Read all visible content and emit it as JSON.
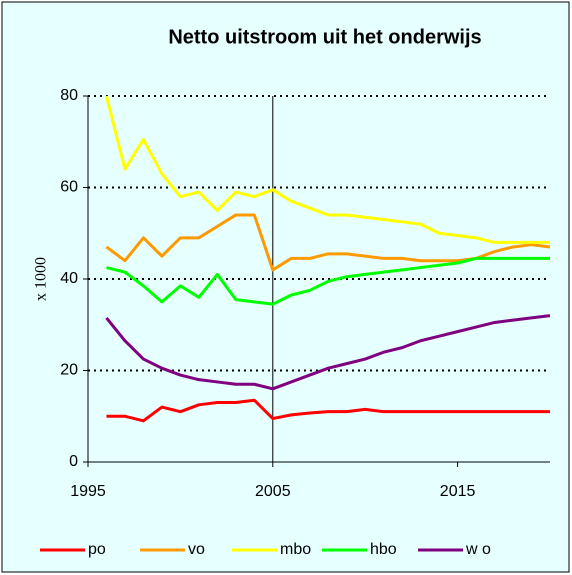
{
  "chart_data": {
    "type": "line",
    "title": "Netto uitstroom uit het  onderwijs",
    "y_label": "x 1000",
    "x": [
      1996,
      1997,
      1998,
      1999,
      2000,
      2001,
      2002,
      2003,
      2004,
      2005,
      2006,
      2007,
      2008,
      2009,
      2010,
      2011,
      2012,
      2013,
      2014,
      2015,
      2016,
      2017,
      2018,
      2019,
      2020
    ],
    "xlim": [
      1995,
      2020
    ],
    "xticks": [
      1995,
      2005,
      2015
    ],
    "ylim": [
      0,
      80
    ],
    "yticks": [
      0,
      20,
      40,
      60,
      80
    ],
    "grid": true,
    "vline": 2005,
    "series": [
      {
        "name": "po",
        "color": "#ff0000",
        "values": [
          10,
          10,
          9,
          12,
          11,
          12.5,
          13,
          13,
          13.5,
          9.5,
          10.3,
          10.7,
          11,
          11,
          11.5,
          11,
          11,
          11,
          11,
          11,
          11,
          11,
          11,
          11,
          11
        ]
      },
      {
        "name": "vo",
        "color": "#ff9900",
        "values": [
          47,
          44,
          49,
          45,
          49,
          49,
          51.5,
          54,
          54,
          42,
          44.5,
          44.5,
          45.5,
          45.5,
          45,
          44.5,
          44.5,
          44,
          44,
          44,
          44.5,
          46,
          47,
          47.5,
          47
        ]
      },
      {
        "name": "mbo",
        "color": "#ffff00",
        "values": [
          80,
          64,
          70.5,
          63,
          58,
          59,
          55,
          59,
          58,
          59.5,
          57,
          55.5,
          54,
          54,
          53.5,
          53,
          52.5,
          52,
          50,
          49.5,
          49,
          48,
          48,
          48,
          48
        ]
      },
      {
        "name": "hbo",
        "color": "#00ff00",
        "values": [
          42.5,
          41.5,
          38.5,
          35,
          38.5,
          36,
          41,
          35.5,
          35,
          34.5,
          36.5,
          37.5,
          39.5,
          40.5,
          41,
          41.5,
          42,
          42.5,
          43,
          43.5,
          44.5,
          44.5,
          44.5,
          44.5,
          44.5
        ]
      },
      {
        "name": "w o",
        "color": "#800080",
        "values": [
          31.5,
          26.5,
          22.5,
          20.5,
          19,
          18,
          17.5,
          17,
          17,
          16,
          17.5,
          19,
          20.5,
          21.5,
          22.5,
          24,
          25,
          26.5,
          27.5,
          28.5,
          29.5,
          30.5,
          31,
          31.5,
          32
        ]
      }
    ]
  }
}
